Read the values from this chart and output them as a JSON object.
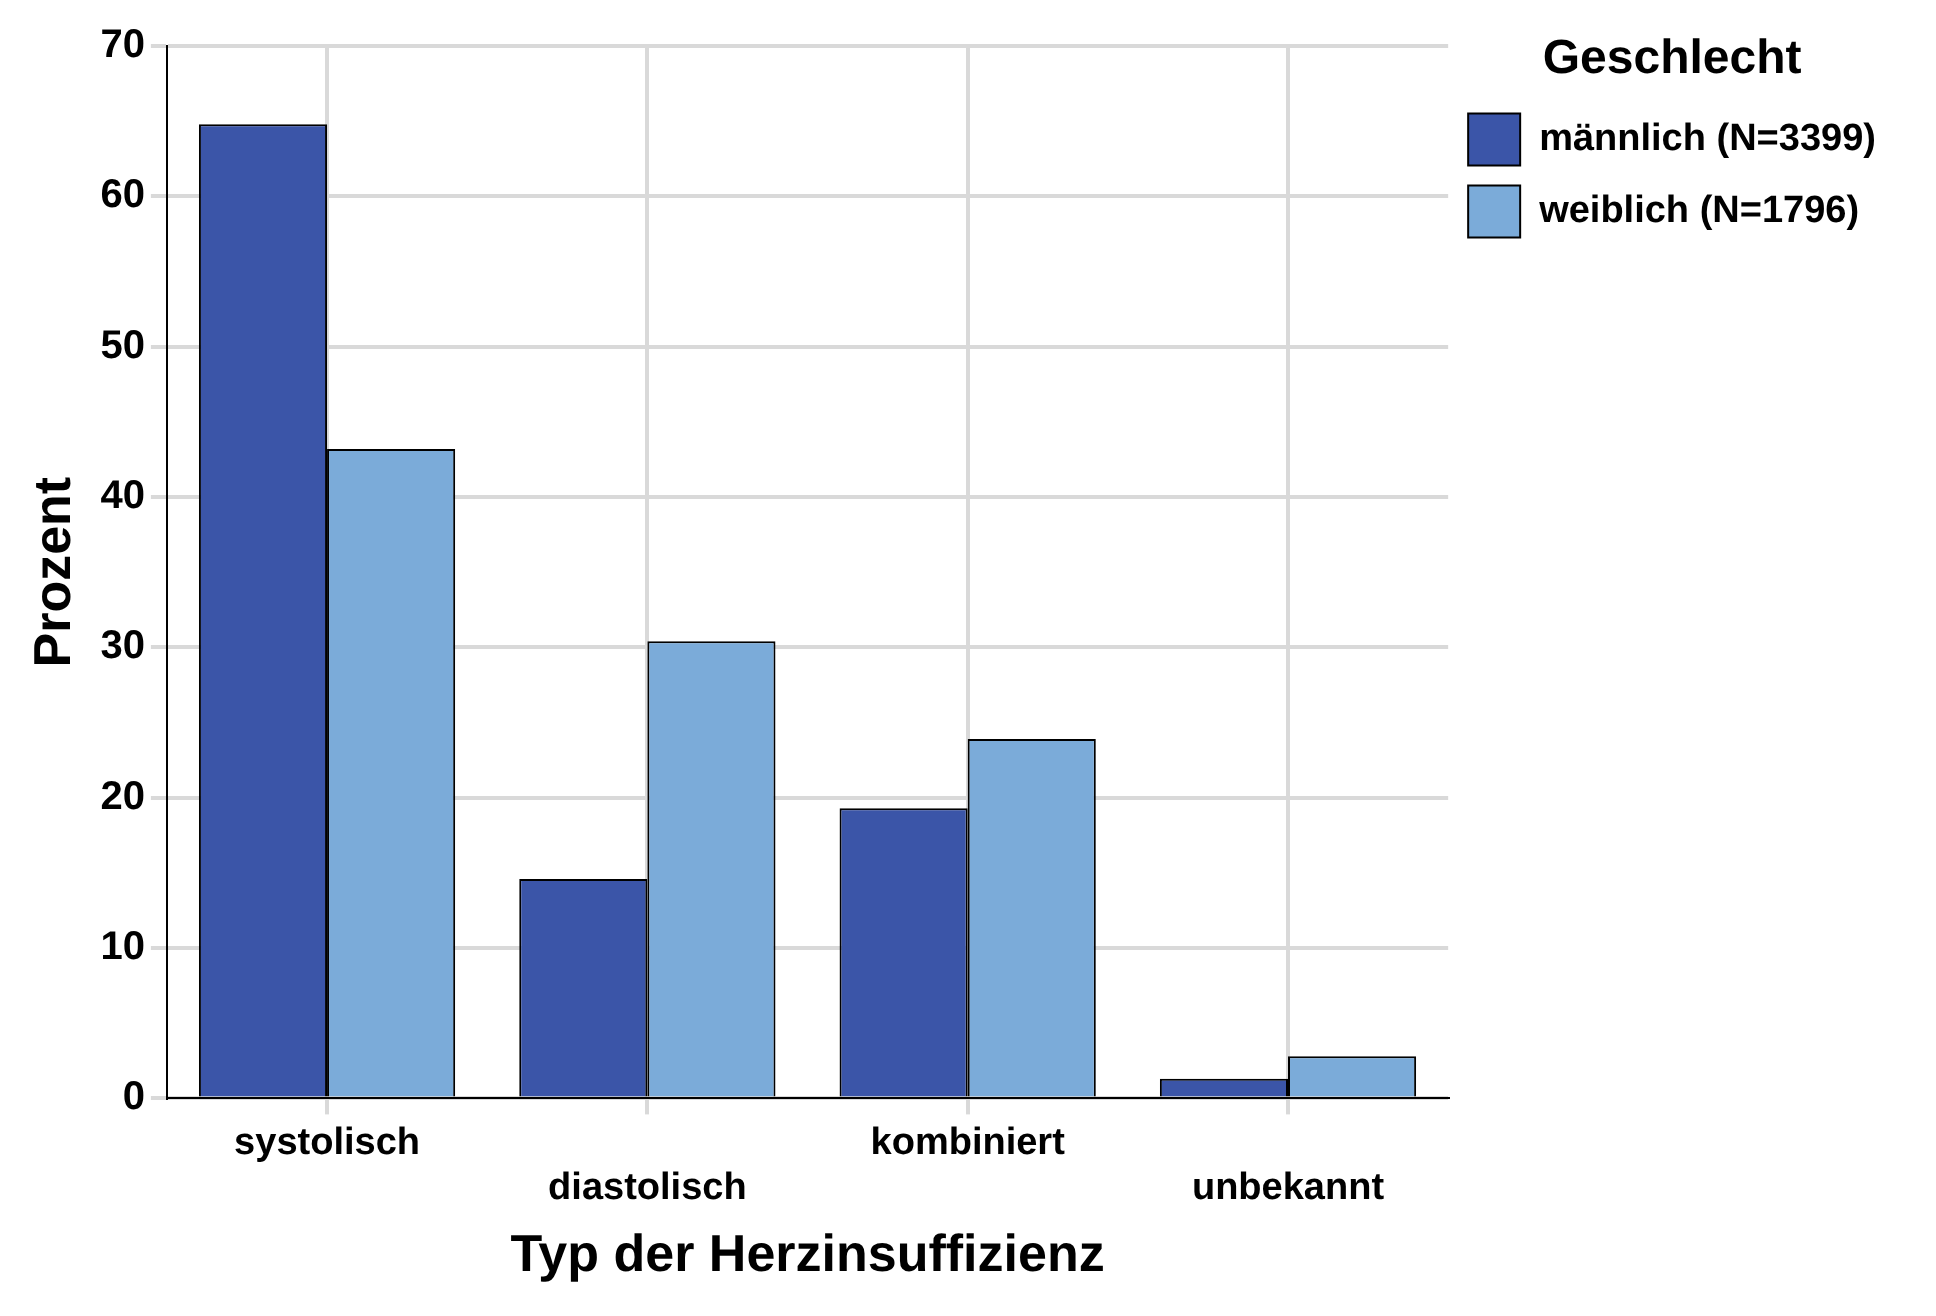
{
  "chart_data": {
    "type": "bar",
    "xlabel": "Typ der Herzinsuffizienz",
    "ylabel": "Prozent",
    "legend_title": "Geschlecht",
    "categories": [
      "systolisch",
      "diastolisch",
      "kombiniert",
      "unbekannt"
    ],
    "series": [
      {
        "name": "männlich (N=3399)",
        "color": "#3b55a8",
        "values": [
          64.8,
          14.6,
          19.3,
          1.3
        ]
      },
      {
        "name": "weiblich (N=1796)",
        "color": "#7babd9",
        "values": [
          43.2,
          30.4,
          23.9,
          2.8
        ]
      }
    ],
    "ylim": [
      0,
      70
    ],
    "yticks": [
      0,
      10,
      20,
      30,
      40,
      50,
      60,
      70
    ],
    "grid": true,
    "legend": "top right"
  }
}
